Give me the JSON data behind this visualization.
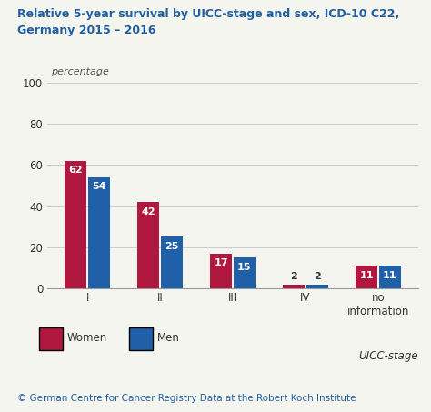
{
  "title_line1": "Relative 5-year survival by UICC-stage and sex, ICD-10 C22,",
  "title_line2": "Germany 2015 – 2016",
  "title_color": "#2060a0",
  "ylabel_text": "percentage",
  "categories": [
    "I",
    "II",
    "III",
    "IV",
    "no\ninformation"
  ],
  "women_values": [
    62,
    42,
    17,
    2,
    11
  ],
  "men_values": [
    54,
    25,
    15,
    2,
    11
  ],
  "women_color": "#b01840",
  "men_color": "#2060a8",
  "bar_label_color_white": "#ffffff",
  "bar_label_color_dark": "#333333",
  "ylim": [
    0,
    100
  ],
  "yticks": [
    0,
    20,
    40,
    60,
    80,
    100
  ],
  "grid_color": "#cccccc",
  "background_color": "#f5f5f0",
  "legend_women": "Women",
  "legend_men": "Men",
  "uicc_label": "UICC-stage",
  "footer": "© German Centre for Cancer Registry Data at the Robert Koch Institute",
  "footer_color": "#2060a0",
  "title_fontsize": 9.0,
  "axis_fontsize": 8.5,
  "bar_label_fontsize": 8.0,
  "legend_fontsize": 8.5,
  "uicc_fontsize": 8.5,
  "footer_fontsize": 7.5
}
